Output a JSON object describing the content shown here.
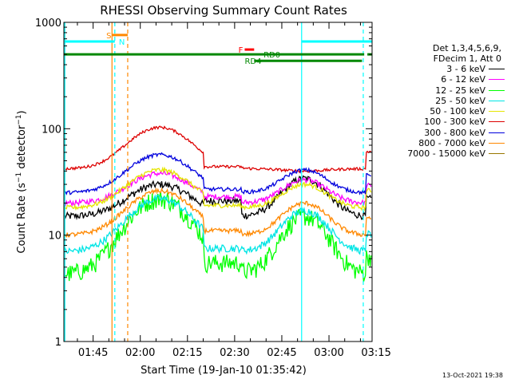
{
  "chart_data": {
    "type": "line",
    "title": "RHESSI Observing Summary Count Rates",
    "xlabel": "Start Time (19-Jan-10 01:35:42)",
    "ylabel": "Count Rate (s⁻¹ detector⁻¹)",
    "ylabel_parts": {
      "base": "Count Rate (s",
      "sup1": "−1",
      "mid": " detector",
      "sup2": "−1",
      "end": ")"
    },
    "yscale": "log",
    "ylim": [
      1,
      1000
    ],
    "y_ticks": [
      1,
      10,
      100,
      1000
    ],
    "y_tick_labels": [
      "1",
      "10",
      "100",
      "1000"
    ],
    "xlim_min": [
      0,
      98
    ],
    "x_ticks_min": [
      9.3,
      24.3,
      39.3,
      54.3,
      69.3,
      84.3,
      99.3
    ],
    "x_tick_labels": [
      "01:45",
      "02:00",
      "02:15",
      "02:30",
      "02:45",
      "03:00",
      "03:15"
    ],
    "x_minor_step_min": 5,
    "legend_header": [
      "Det 1,3,4,5,6,9,",
      "FDecim 1, Att 0"
    ],
    "series": [
      {
        "name": "3 - 6 keV",
        "color": "#000000",
        "base": 15,
        "peak1": 30,
        "peak2": 34,
        "gap": 21,
        "noise": 0.08
      },
      {
        "name": "6 - 12 keV",
        "color": "#ff00ff",
        "base": 20,
        "peak1": 38,
        "peak2": 33,
        "gap": 23,
        "noise": 0.06
      },
      {
        "name": "12 - 25 keV",
        "color": "#00ff00",
        "base": 4.3,
        "peak1": 22,
        "peak2": 15,
        "gap": 5.5,
        "noise": 0.2
      },
      {
        "name": "25 - 50 keV",
        "color": "#00e5e5",
        "base": 7.0,
        "peak1": 22,
        "peak2": 17,
        "gap": 7.5,
        "noise": 0.08
      },
      {
        "name": "50 - 100 keV",
        "color": "#e5e500",
        "base": 18,
        "peak1": 41,
        "peak2": 30,
        "gap": 19,
        "noise": 0.05
      },
      {
        "name": "100 - 300 keV",
        "color": "#dd0000",
        "base": 42,
        "peak1": 103,
        "peak2": 40,
        "gap": 44,
        "noise": 0.03
      },
      {
        "name": "300 - 800 keV",
        "color": "#0000dd",
        "base": 25,
        "peak1": 57,
        "peak2": 41,
        "gap": 27,
        "noise": 0.04
      },
      {
        "name": "800 - 7000 keV",
        "color": "#ff8800",
        "base": 10,
        "peak1": 26,
        "peak2": 20,
        "gap": 11,
        "noise": 0.05
      },
      {
        "name": "7000 - 15000 keV",
        "color": "#997700",
        "base": 1.0,
        "peak1": 1.0,
        "peak2": 1.0,
        "gap": 1.0,
        "noise": 0.0
      }
    ],
    "peak1_center_min": 30.5,
    "peak2_center_min": 76.5,
    "vertical_markers": [
      {
        "t_min": 0.3,
        "color": "#00ffff",
        "style": "solid"
      },
      {
        "t_min": 15.3,
        "color": "#ff8800",
        "style": "solid"
      },
      {
        "t_min": 16.2,
        "color": "#00ffff",
        "style": "dashed"
      },
      {
        "t_min": 20.3,
        "color": "#ff8800",
        "style": "dashed"
      },
      {
        "t_min": 75.6,
        "color": "#00ffff",
        "style": "solid"
      },
      {
        "t_min": 95.2,
        "color": "#00ffff",
        "style": "dashed"
      }
    ],
    "flag_bars": [
      {
        "label": "S",
        "color": "#ff8800",
        "segments": [
          [
            15.3,
            20.3
          ]
        ],
        "y_val": 760,
        "label_t": 13.5
      },
      {
        "label": "N",
        "color": "#00ffff",
        "segments": [
          [
            0.3,
            16.2
          ],
          [
            75.6,
            98
          ]
        ],
        "y_val": 660,
        "label_t": 17.5
      },
      {
        "label": "F",
        "color": "#ff0000",
        "segments": [
          [
            57.5,
            60.5
          ]
        ],
        "y_val": 555,
        "label_t": 55.5
      },
      {
        "label": "RD0",
        "color": "#008800",
        "segments": [
          [
            0,
            95.5
          ],
          [
            96.5,
            98
          ]
        ],
        "y_val": 500,
        "label_t": 63.5
      },
      {
        "label": "RD4",
        "color": "#008800",
        "segments": [
          [
            60.5,
            94.8
          ]
        ],
        "y_val": 435,
        "label_t": 57.5
      }
    ]
  },
  "timestamp": "13-Oct-2021 19:38"
}
